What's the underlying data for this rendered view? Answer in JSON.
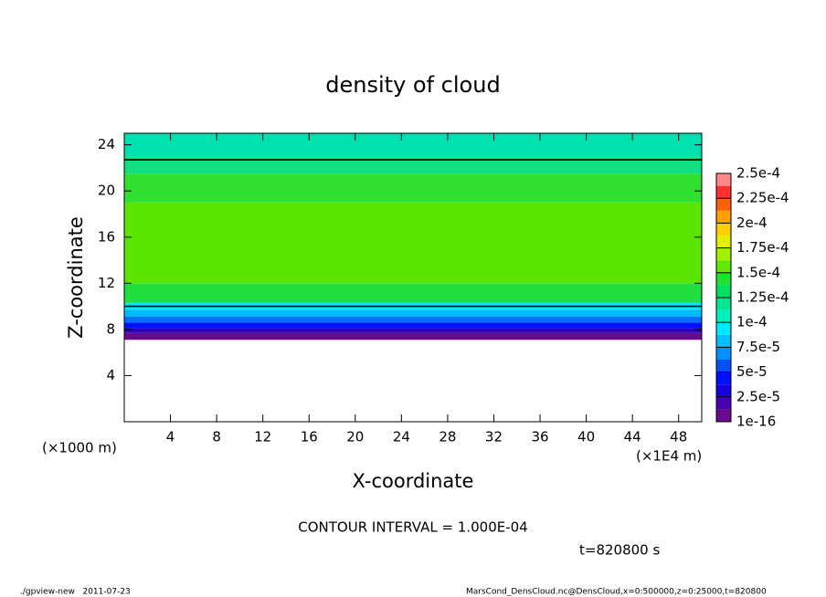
{
  "chart_data": {
    "type": "contour",
    "title": "density of cloud",
    "x_label": "X-coordinate",
    "y_label": "Z-coordinate",
    "x_unit": "(×1E4 m)",
    "y_unit": "(×1000 m)",
    "xlim": [
      0,
      50
    ],
    "ylim": [
      0,
      25
    ],
    "xticks": [
      4,
      8,
      12,
      16,
      20,
      24,
      28,
      32,
      36,
      40,
      44,
      48
    ],
    "yticks": [
      4,
      8,
      12,
      16,
      20,
      24
    ],
    "layers": [
      {
        "bottom": 7.1,
        "top": 7.7,
        "color": "#6a0a8c"
      },
      {
        "bottom": 7.7,
        "top": 8.1,
        "color": "#3000c0"
      },
      {
        "bottom": 8.1,
        "top": 8.6,
        "color": "#0010ff"
      },
      {
        "bottom": 8.6,
        "top": 9.1,
        "color": "#0070ff"
      },
      {
        "bottom": 9.1,
        "top": 9.7,
        "color": "#00b8ff"
      },
      {
        "bottom": 9.7,
        "top": 10.3,
        "color": "#00e8f0"
      },
      {
        "bottom": 10.3,
        "top": 12,
        "color": "#20e040"
      },
      {
        "bottom": 12,
        "top": 19,
        "color": "#5ae600"
      },
      {
        "bottom": 19,
        "top": 21.5,
        "color": "#30e030"
      },
      {
        "bottom": 21.5,
        "top": 23,
        "color": "#10e080"
      },
      {
        "bottom": 23,
        "top": 25,
        "color": "#00e0b0"
      }
    ],
    "contours": [
      10,
      22.7
    ],
    "colorbar": {
      "ticks": [
        {
          "value": 1e-16,
          "label": "1e-16"
        },
        {
          "value": 2.5e-05,
          "label": "2.5e-5"
        },
        {
          "value": 5e-05,
          "label": "5e-5"
        },
        {
          "value": 7.5e-05,
          "label": "7.5e-5"
        },
        {
          "value": 0.0001,
          "label": "1e-4"
        },
        {
          "value": 0.000125,
          "label": "1.25e-4"
        },
        {
          "value": 0.00015,
          "label": "1.5e-4"
        },
        {
          "value": 0.000175,
          "label": "1.75e-4"
        },
        {
          "value": 0.0002,
          "label": "2e-4"
        },
        {
          "value": 0.000225,
          "label": "2.25e-4"
        },
        {
          "value": 0.00025,
          "label": "2.5e-4"
        }
      ],
      "colors": [
        "#6a0a8c",
        "#4a00b0",
        "#1a00e0",
        "#0010ff",
        "#0050ff",
        "#0090ff",
        "#00c0ff",
        "#00e8ff",
        "#00f0c0",
        "#00e890",
        "#00e060",
        "#20e030",
        "#60e800",
        "#a0f000",
        "#e0f000",
        "#ffd000",
        "#ffa000",
        "#ff6000",
        "#ff3030",
        "#ff8888"
      ]
    },
    "contour_interval": "CONTOUR INTERVAL = 1.000E-04",
    "time_label": "t=820800 s",
    "footer_left": "./gpview-new   2011-07-23",
    "footer_right": "MarsCond_DensCloud.nc@DensCloud,x=0:500000,z=0:25000,t=820800"
  }
}
